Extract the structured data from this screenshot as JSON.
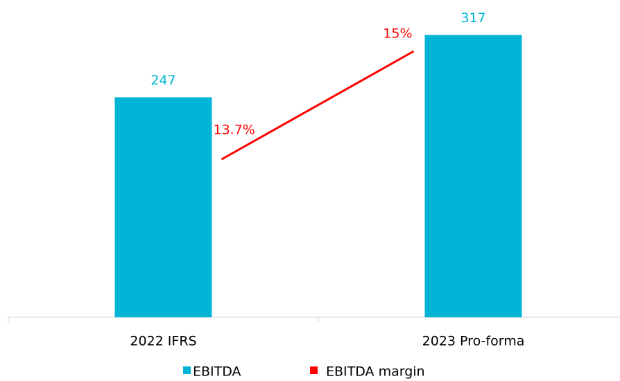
{
  "chart_data": {
    "type": "bar_line",
    "categories": [
      "2022 IFRS",
      "2023 Pro-forma"
    ],
    "series": [
      {
        "name": "EBITDA",
        "color": "#00b4d6",
        "type": "bar",
        "values": [
          247,
          317
        ]
      },
      {
        "name": "EBITDA margin",
        "color": "#ff0000",
        "type": "line",
        "axis": "y2",
        "values": [
          13.7,
          15
        ],
        "value_labels": [
          "13.7%",
          "15%"
        ]
      }
    ],
    "ylim": [
      0,
      350
    ],
    "y2lim": [
      11.8,
      15.55
    ]
  }
}
